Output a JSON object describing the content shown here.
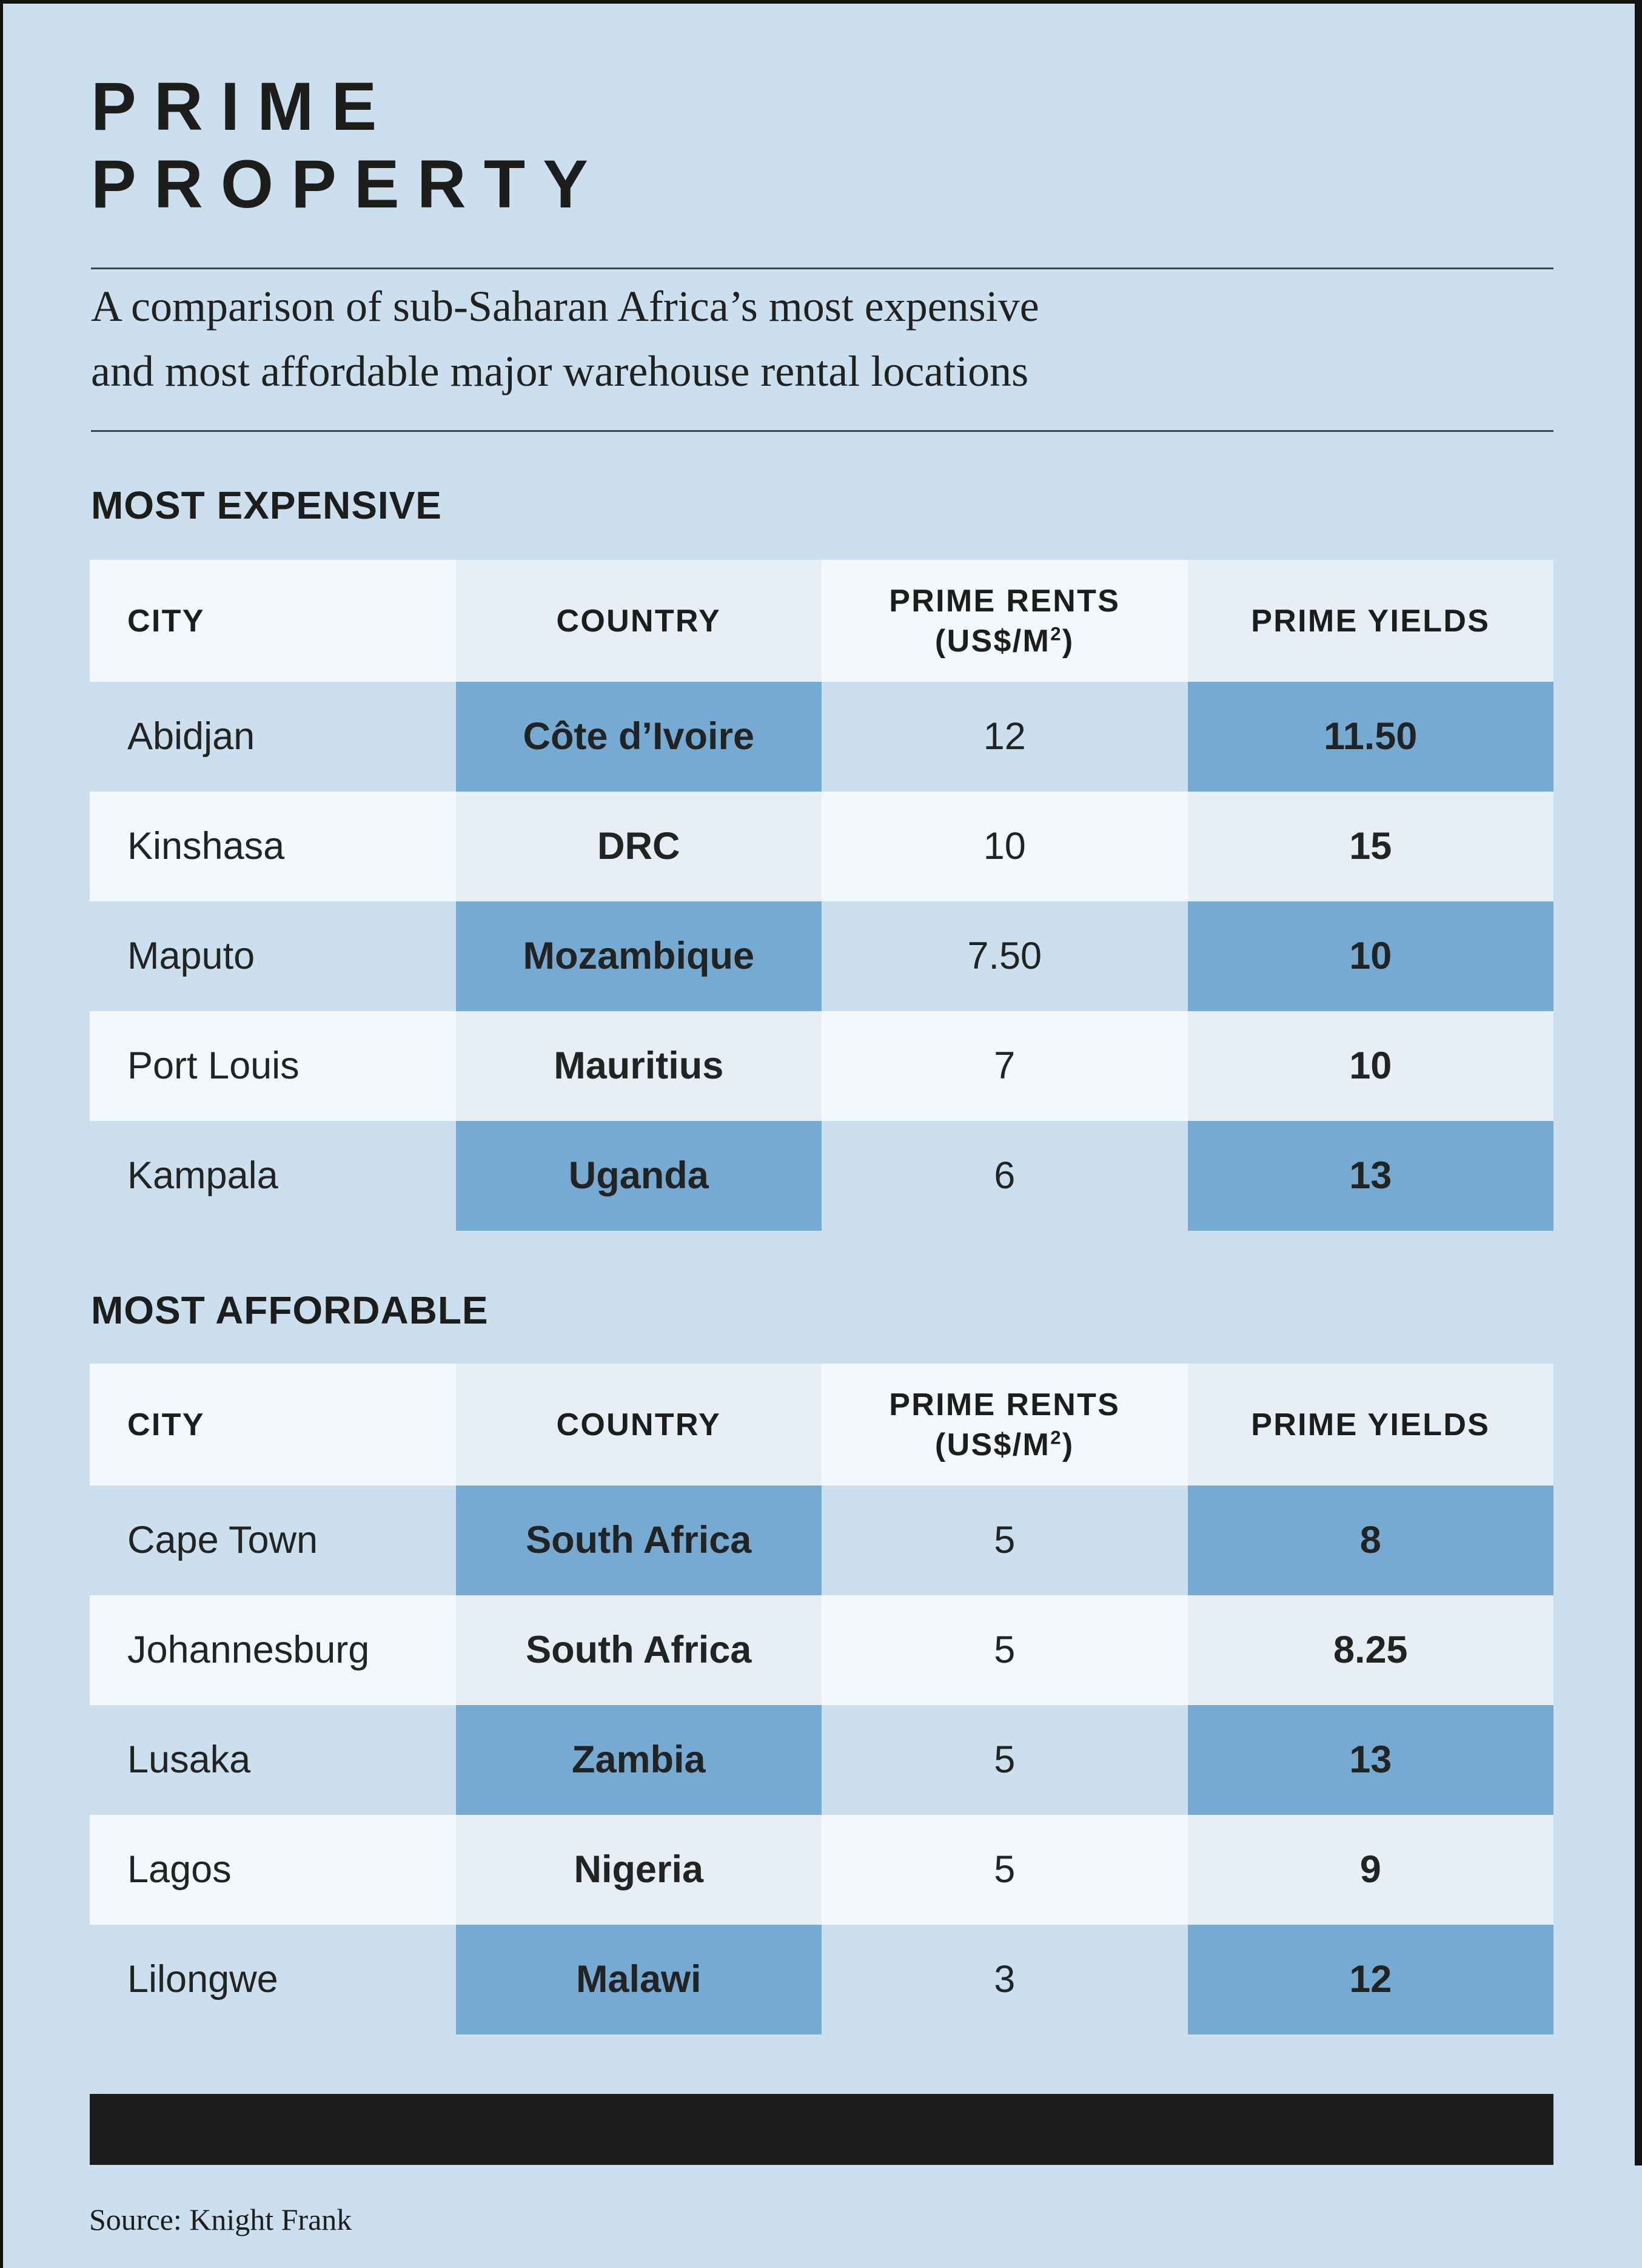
{
  "page": {
    "title_line1": "PRIME",
    "title_line2": "PROPERTY",
    "subtitle_line1": "A comparison of sub-Saharan Africa’s most expensive",
    "subtitle_line2": "and most affordable major warehouse rental locations",
    "source": "Source: Knight Frank"
  },
  "colors": {
    "background": "#ccdfee",
    "cell_light": "#f3f8fc",
    "cell_mid": "#e7eef6",
    "cell_blue": "#75aad3",
    "ink": "#1d1d1b"
  },
  "table_headers": {
    "city": "CITY",
    "country": "COUNTRY",
    "rents_line1": "PRIME RENTS",
    "rents_line2_pre": "(US$/M",
    "rents_sup": "2",
    "rents_close": ")",
    "yields": "PRIME YIELDS"
  },
  "sections": [
    {
      "label": "MOST EXPENSIVE",
      "rows": [
        {
          "city": "Abidjan",
          "country": "Côte d’Ivoire",
          "rent": "12",
          "yield": "11.50"
        },
        {
          "city": "Kinshasa",
          "country": "DRC",
          "rent": "10",
          "yield": "15"
        },
        {
          "city": "Maputo",
          "country": "Mozambique",
          "rent": "7.50",
          "yield": "10"
        },
        {
          "city": "Port Louis",
          "country": "Mauritius",
          "rent": "7",
          "yield": "10"
        },
        {
          "city": "Kampala",
          "country": "Uganda",
          "rent": "6",
          "yield": "13"
        }
      ]
    },
    {
      "label": "MOST AFFORDABLE",
      "rows": [
        {
          "city": "Cape Town",
          "country": "South Africa",
          "rent": "5",
          "yield": "8"
        },
        {
          "city": "Johannesburg",
          "country": "South Africa",
          "rent": "5",
          "yield": "8.25"
        },
        {
          "city": "Lusaka",
          "country": "Zambia",
          "rent": "5",
          "yield": "13"
        },
        {
          "city": "Lagos",
          "country": "Nigeria",
          "rent": "5",
          "yield": "9"
        },
        {
          "city": "Lilongwe",
          "country": "Malawi",
          "rent": "3",
          "yield": "12"
        }
      ]
    }
  ],
  "chart_data": [
    {
      "type": "table",
      "title": "MOST EXPENSIVE",
      "columns": [
        "CITY",
        "COUNTRY",
        "PRIME RENTS (US$/M²)",
        "PRIME YIELDS"
      ],
      "rows": [
        [
          "Abidjan",
          "Côte d’Ivoire",
          12,
          11.5
        ],
        [
          "Kinshasa",
          "DRC",
          10,
          15
        ],
        [
          "Maputo",
          "Mozambique",
          7.5,
          10
        ],
        [
          "Port Louis",
          "Mauritius",
          7,
          10
        ],
        [
          "Kampala",
          "Uganda",
          6,
          13
        ]
      ]
    },
    {
      "type": "table",
      "title": "MOST AFFORDABLE",
      "columns": [
        "CITY",
        "COUNTRY",
        "PRIME RENTS (US$/M²)",
        "PRIME YIELDS"
      ],
      "rows": [
        [
          "Cape Town",
          "South Africa",
          5,
          8
        ],
        [
          "Johannesburg",
          "South Africa",
          5,
          8.25
        ],
        [
          "Lusaka",
          "Zambia",
          5,
          13
        ],
        [
          "Lagos",
          "Nigeria",
          5,
          9
        ],
        [
          "Lilongwe",
          "Malawi",
          3,
          12
        ]
      ]
    }
  ]
}
